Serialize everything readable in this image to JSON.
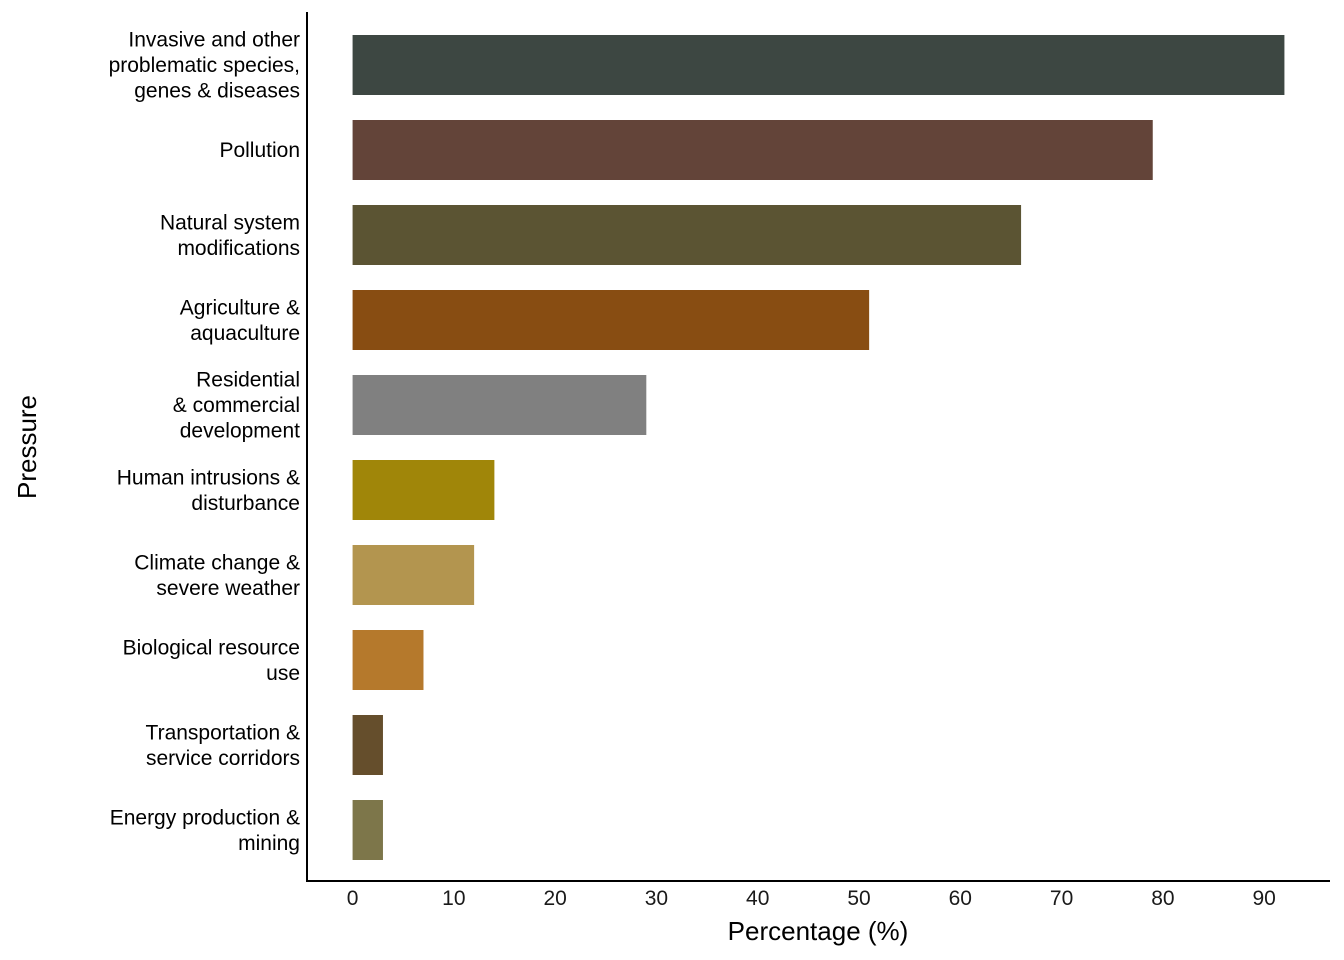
{
  "chart_data": {
    "type": "bar",
    "orientation": "horizontal",
    "title": "",
    "xlabel": "Percentage (%)",
    "ylabel": "Pressure",
    "xlim": [
      -4.5,
      96.5
    ],
    "xticks": [
      0,
      10,
      20,
      30,
      40,
      50,
      60,
      70,
      80,
      90
    ],
    "grid": false,
    "legend": "none",
    "categories": [
      [
        "Invasive and other",
        "problematic species,",
        "genes & diseases"
      ],
      [
        "Pollution"
      ],
      [
        "Natural system",
        "modifications"
      ],
      [
        "Agriculture &",
        "aquaculture"
      ],
      [
        "Residential",
        "& commercial",
        "development"
      ],
      [
        "Human intrusions &",
        "disturbance"
      ],
      [
        "Climate change &",
        "severe weather"
      ],
      [
        "Biological resource",
        "use"
      ],
      [
        "Transportation &",
        "service corridors"
      ],
      [
        "Energy production &",
        "mining"
      ]
    ],
    "values": [
      92,
      79,
      66,
      51,
      29,
      14,
      12,
      7,
      3,
      3
    ],
    "colors": [
      "#3d4742",
      "#634439",
      "#5b5433",
      "#884d12",
      "#808080",
      "#a08609",
      "#b3954f",
      "#b5792c",
      "#654e2c",
      "#7d764a"
    ]
  }
}
